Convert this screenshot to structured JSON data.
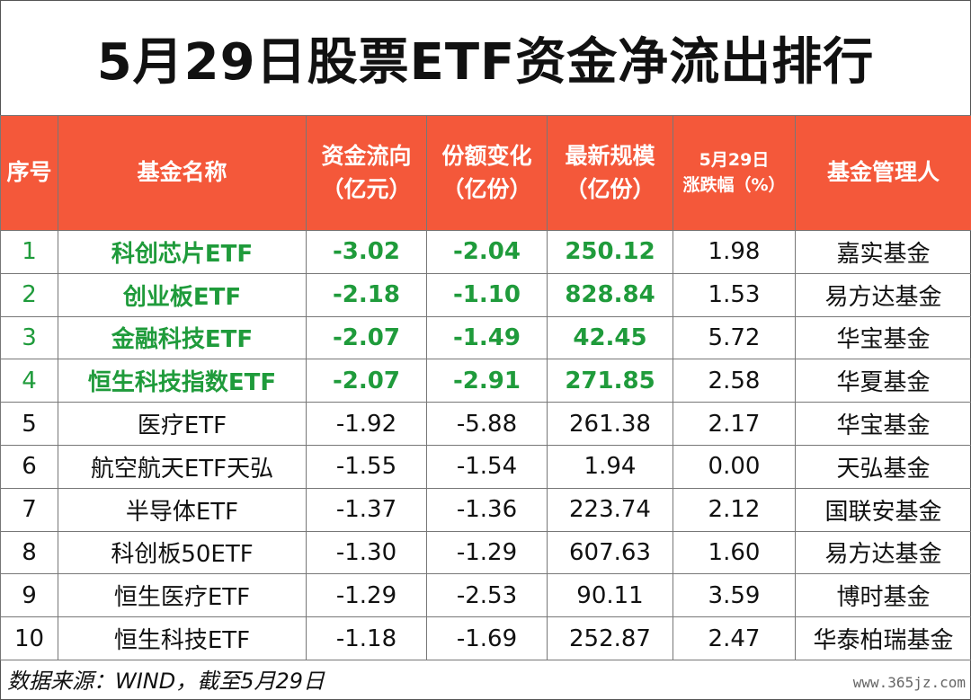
{
  "title": "5月29日股票ETF资金净流出排行",
  "headers": {
    "index": "序号",
    "name": "基金名称",
    "flow_1": "资金流向",
    "flow_2": "（亿元）",
    "share_1": "份额变化",
    "share_2": "（亿份）",
    "scale_1": "最新规模",
    "scale_2": "（亿份）",
    "change_1": "5月29日",
    "change_2": "涨跌幅（%）",
    "manager": "基金管理人"
  },
  "rows": [
    {
      "index": "1",
      "name": "科创芯片ETF",
      "flow": "-3.02",
      "share": "-2.04",
      "scale": "250.12",
      "change": "1.98",
      "manager": "嘉实基金"
    },
    {
      "index": "2",
      "name": "创业板ETF",
      "flow": "-2.18",
      "share": "-1.10",
      "scale": "828.84",
      "change": "1.53",
      "manager": "易方达基金"
    },
    {
      "index": "3",
      "name": "金融科技ETF",
      "flow": "-2.07",
      "share": "-1.49",
      "scale": "42.45",
      "change": "5.72",
      "manager": "华宝基金"
    },
    {
      "index": "4",
      "name": "恒生科技指数ETF",
      "flow": "-2.07",
      "share": "-2.91",
      "scale": "271.85",
      "change": "2.58",
      "manager": "华夏基金"
    },
    {
      "index": "5",
      "name": "医疗ETF",
      "flow": "-1.92",
      "share": "-5.88",
      "scale": "261.38",
      "change": "2.17",
      "manager": "华宝基金"
    },
    {
      "index": "6",
      "name": "航空航天ETF天弘",
      "flow": "-1.55",
      "share": "-1.54",
      "scale": "1.94",
      "change": "0.00",
      "manager": "天弘基金"
    },
    {
      "index": "7",
      "name": "半导体ETF",
      "flow": "-1.37",
      "share": "-1.36",
      "scale": "223.74",
      "change": "2.12",
      "manager": "国联安基金"
    },
    {
      "index": "8",
      "name": "科创板50ETF",
      "flow": "-1.30",
      "share": "-1.29",
      "scale": "607.63",
      "change": "1.60",
      "manager": "易方达基金"
    },
    {
      "index": "9",
      "name": "恒生医疗ETF",
      "flow": "-1.29",
      "share": "-2.53",
      "scale": "90.11",
      "change": "3.59",
      "manager": "博时基金"
    },
    {
      "index": "10",
      "name": "恒生科技ETF",
      "flow": "-1.18",
      "share": "-1.69",
      "scale": "252.87",
      "change": "2.47",
      "manager": "华泰柏瑞基金"
    }
  ],
  "footer": "数据来源：WIND，截至5月29日",
  "watermark": "www.365jz.com",
  "colors": {
    "header_bg": "#f4583a",
    "highlight_text": "#1f9b3b"
  }
}
